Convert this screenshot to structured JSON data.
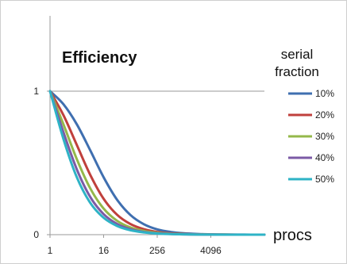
{
  "chart_data": {
    "type": "line",
    "title": "Efficiency",
    "xlabel": "procs",
    "ylabel": "",
    "x_scale": "log2",
    "xlim": [
      1,
      65536
    ],
    "ylim": [
      0,
      1
    ],
    "x_ticks": [
      1,
      16,
      256,
      4096
    ],
    "x_tick_labels": [
      "1",
      "16",
      "256",
      "4096"
    ],
    "y_ticks": [
      0,
      1
    ],
    "y_tick_labels": [
      "0",
      "1"
    ],
    "grid": "horizontal line at y=1",
    "legend": {
      "title": [
        "serial",
        "fraction"
      ],
      "placement": "right"
    },
    "x": [
      1,
      2,
      4,
      8,
      16,
      32,
      64,
      128,
      256,
      512,
      1024,
      2048,
      4096,
      8192,
      16384,
      32768,
      65536
    ],
    "series": [
      {
        "name": "10%",
        "color": "#3f6fb0",
        "values": [
          1.0,
          0.909,
          0.769,
          0.588,
          0.4,
          0.244,
          0.137,
          0.073,
          0.037,
          0.019,
          0.0097,
          0.0049,
          0.0024,
          0.0012,
          0.0006,
          0.0003,
          0.0002
        ]
      },
      {
        "name": "20%",
        "color": "#c0403c",
        "values": [
          1.0,
          0.833,
          0.625,
          0.417,
          0.25,
          0.139,
          0.074,
          0.038,
          0.019,
          0.0097,
          0.0049,
          0.0024,
          0.0012,
          0.0006,
          0.0003,
          0.0002,
          0.0001
        ]
      },
      {
        "name": "30%",
        "color": "#94b84a",
        "values": [
          1.0,
          0.769,
          0.526,
          0.323,
          0.182,
          0.097,
          0.05,
          0.026,
          0.013,
          0.0065,
          0.0033,
          0.0016,
          0.0008,
          0.0004,
          0.0002,
          0.0001,
          0.0001
        ]
      },
      {
        "name": "40%",
        "color": "#7b5aa6",
        "values": [
          1.0,
          0.714,
          0.455,
          0.263,
          0.143,
          0.075,
          0.038,
          0.019,
          0.0097,
          0.0049,
          0.0024,
          0.0012,
          0.0006,
          0.0003,
          0.0002,
          0.0001,
          0.0
        ]
      },
      {
        "name": "50%",
        "color": "#2eb3c6",
        "values": [
          1.0,
          0.667,
          0.4,
          0.222,
          0.118,
          0.061,
          0.031,
          0.016,
          0.0078,
          0.0039,
          0.002,
          0.001,
          0.0005,
          0.0002,
          0.0001,
          0.0001,
          0.0
        ]
      }
    ]
  }
}
